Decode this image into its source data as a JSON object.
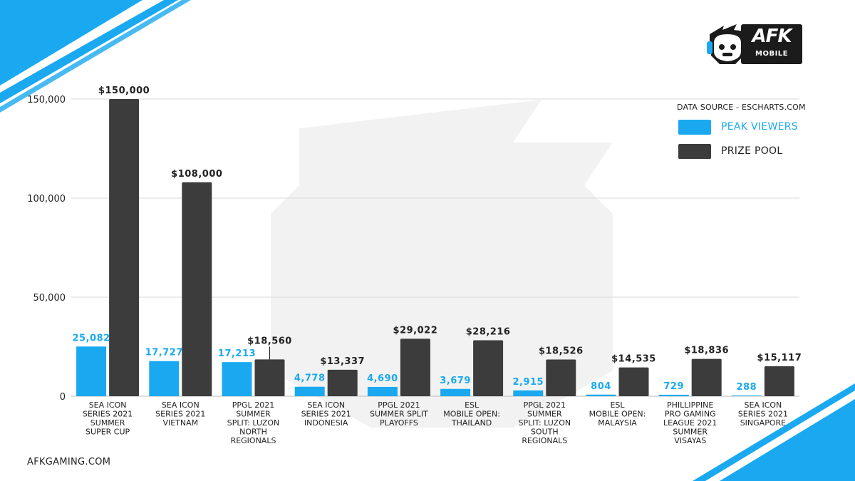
{
  "brand": {
    "logo_text": "AFK",
    "logo_subtext": "MOBILE",
    "website": "AFKGAMING.COM",
    "accent_color": "#1aa9f0",
    "dark_color": "#3c3c3c",
    "icon": "monkey-headset-mascot-icon"
  },
  "legend": {
    "source": "DATA SOURCE - ESCHARTS.COM",
    "items": [
      {
        "label": "PEAK VIEWERS",
        "color": "#1aa9f0",
        "text_color": "#1aa9f0"
      },
      {
        "label": "PRIZE POOL",
        "color": "#3c3c3c",
        "text_color": "#222222"
      }
    ]
  },
  "chart_data": {
    "type": "bar",
    "ylim": [
      0,
      150000
    ],
    "yticks": [
      0,
      50000,
      100000,
      150000
    ],
    "ytick_labels": [
      "0",
      "50,000",
      "100,000",
      "150,000"
    ],
    "grid": true,
    "legend_position": "top-right",
    "categories": [
      [
        "SEA ICON",
        "SERIES 2021",
        "SUMMER",
        "SUPER CUP"
      ],
      [
        "SEA ICON",
        "SERIES 2021",
        "VIETNAM"
      ],
      [
        "PPGL 2021",
        "SUMMER",
        "SPLIT: LUZON",
        "NORTH",
        "REGIONALS"
      ],
      [
        "SEA ICON",
        "SERIES 2021",
        "INDONESIA"
      ],
      [
        "PPGL 2021",
        "SUMMER SPLIT",
        "PLAYOFFS"
      ],
      [
        "ESL",
        "MOBILE OPEN:",
        "THAILAND"
      ],
      [
        "PPGL 2021",
        "SUMMER",
        "SPLIT: LUZON",
        "SOUTH",
        "REGIONALS"
      ],
      [
        "ESL",
        "MOBILE OPEN:",
        "MALAYSIA"
      ],
      [
        "PHILLIPPINE",
        "PRO GAMING",
        "LEAGUE 2021",
        "SUMMER",
        "VISAYAS"
      ],
      [
        "SEA ICON",
        "SERIES 2021",
        "SINGAPORE"
      ]
    ],
    "series": [
      {
        "name": "PEAK VIEWERS",
        "color": "#1aa9f0",
        "values": [
          25082,
          17727,
          17213,
          4778,
          4690,
          3679,
          2915,
          804,
          729,
          288
        ],
        "labels": [
          "25,082",
          "17,727",
          "17,213",
          "4,778",
          "4,690",
          "3,679",
          "2,915",
          "804",
          "729",
          "288"
        ]
      },
      {
        "name": "PRIZE POOL",
        "color": "#3c3c3c",
        "values": [
          150000,
          108000,
          18560,
          13337,
          29022,
          28216,
          18526,
          14535,
          18836,
          15117
        ],
        "labels": [
          "$150,000",
          "$108,000",
          "$18,560",
          "$13,337",
          "$29,022",
          "$28,216",
          "$18,526",
          "$14,535",
          "$18,836",
          "$15,117"
        ]
      }
    ]
  }
}
